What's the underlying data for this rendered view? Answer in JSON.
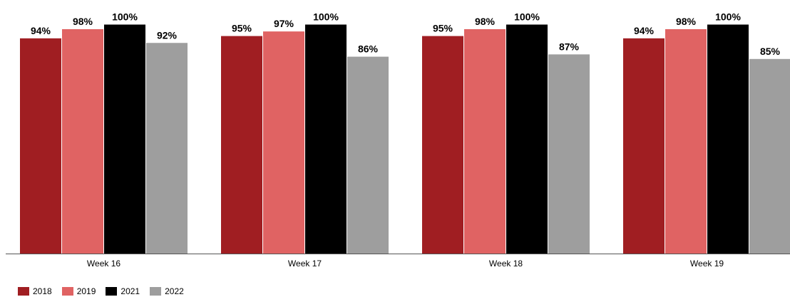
{
  "chart_data": {
    "type": "bar",
    "categories": [
      "Week 16",
      "Week 17",
      "Week 18",
      "Week 19"
    ],
    "series": [
      {
        "name": "2018",
        "color": "#A01E22",
        "values": [
          94,
          95,
          95,
          94
        ],
        "labels": [
          "94%",
          "95%",
          "95%",
          "94%"
        ]
      },
      {
        "name": "2019",
        "color": "#E06363",
        "values": [
          98,
          97,
          98,
          98
        ],
        "labels": [
          "98%",
          "97%",
          "98%",
          "98%"
        ]
      },
      {
        "name": "2021",
        "color": "#000000",
        "values": [
          100,
          100,
          100,
          100
        ],
        "labels": [
          "100%",
          "100%",
          "100%",
          "100%"
        ]
      },
      {
        "name": "2022",
        "color": "#9E9E9E",
        "values": [
          92,
          86,
          87,
          85
        ],
        "labels": [
          "92%",
          "86%",
          "87%",
          "85%"
        ]
      }
    ],
    "title": "",
    "xlabel": "",
    "ylabel": "",
    "ylim": [
      0,
      100
    ],
    "grid": false,
    "legend_position": "bottom-left"
  }
}
